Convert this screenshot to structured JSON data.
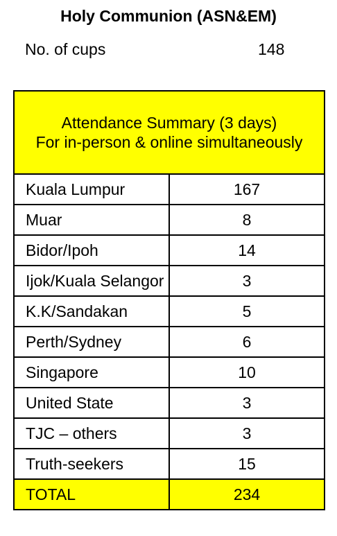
{
  "header": {
    "title": "Holy Communion (ASN&EM)",
    "cups_label": "No. of cups",
    "cups_value": "148"
  },
  "summary": {
    "heading_line1": "Attendance Summary (3 days)",
    "heading_line2": "For in-person & online simultaneously",
    "rows": [
      {
        "name": "Kuala Lumpur",
        "value": "167"
      },
      {
        "name": "Muar",
        "value": "8"
      },
      {
        "name": "Bidor/Ipoh",
        "value": "14"
      },
      {
        "name": "Ijok/Kuala Selangor",
        "value": "3"
      },
      {
        "name": "K.K/Sandakan",
        "value": "5"
      },
      {
        "name": "Perth/Sydney",
        "value": "6"
      },
      {
        "name": "Singapore",
        "value": "10"
      },
      {
        "name": "United State",
        "value": "3"
      },
      {
        "name": "TJC – others",
        "value": "3"
      },
      {
        "name": "Truth-seekers",
        "value": "15"
      }
    ],
    "total_label": "TOTAL",
    "total_value": "234",
    "highlight_color": "#ffff00"
  }
}
